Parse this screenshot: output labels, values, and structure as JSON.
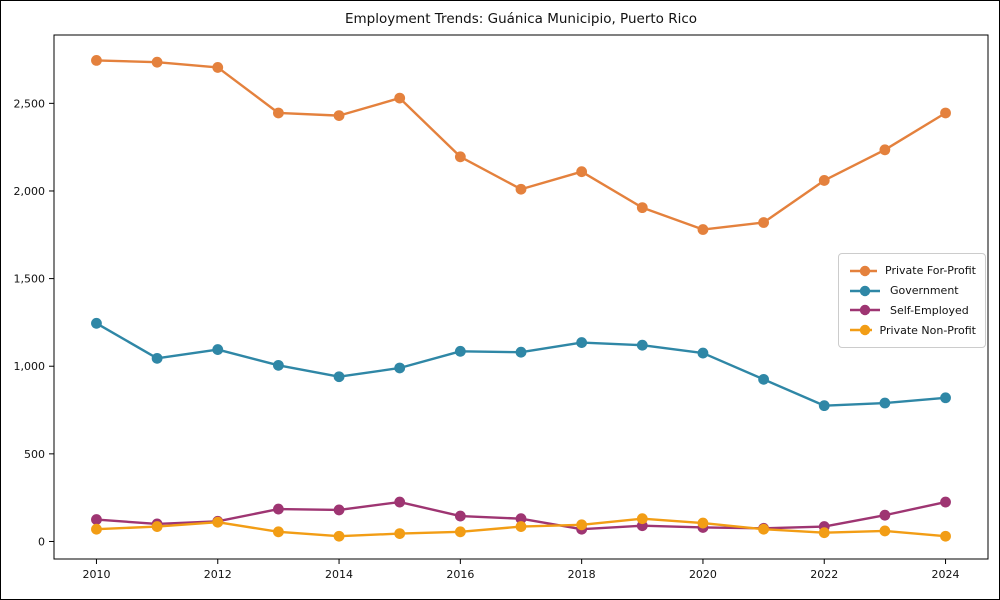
{
  "chart_data": {
    "type": "line",
    "title": "Employment Trends: Guánica Municipio, Puerto Rico",
    "xlabel": "",
    "ylabel": "",
    "x": [
      2010,
      2011,
      2012,
      2013,
      2014,
      2015,
      2016,
      2017,
      2018,
      2019,
      2020,
      2021,
      2022,
      2023,
      2024
    ],
    "series": [
      {
        "name": "Private For-Profit",
        "color": "#e4813d",
        "values": [
          2745,
          2735,
          2705,
          2445,
          2430,
          2530,
          2195,
          2010,
          2110,
          1905,
          1780,
          1820,
          2060,
          2235,
          2445
        ]
      },
      {
        "name": "Government",
        "color": "#2f87a6",
        "values": [
          1245,
          1045,
          1095,
          1005,
          940,
          990,
          1085,
          1080,
          1135,
          1120,
          1075,
          925,
          775,
          790,
          820
        ]
      },
      {
        "name": "Self-Employed",
        "color": "#9e3572",
        "values": [
          125,
          100,
          115,
          185,
          180,
          225,
          145,
          130,
          70,
          90,
          80,
          75,
          85,
          150,
          225
        ]
      },
      {
        "name": "Private Non-Profit",
        "color": "#f29d15",
        "values": [
          70,
          85,
          110,
          55,
          30,
          45,
          55,
          85,
          95,
          130,
          105,
          70,
          50,
          60,
          30
        ]
      }
    ],
    "xticks": [
      2010,
      2012,
      2014,
      2016,
      2018,
      2020,
      2022,
      2024
    ],
    "yticks": [
      0,
      500,
      1000,
      1500,
      2000,
      2500
    ],
    "ytick_labels": [
      "0",
      "500",
      "1,000",
      "1,500",
      "2,000",
      "2,500"
    ],
    "xlim": [
      2009.3,
      2024.7
    ],
    "ylim": [
      -100,
      2890
    ],
    "grid": false,
    "legend_position": "center right",
    "marker": "circle"
  }
}
